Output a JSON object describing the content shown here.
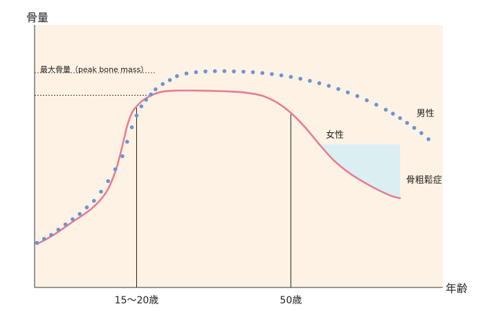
{
  "chart_data": {
    "type": "line",
    "title": "",
    "ylabel": "骨量",
    "xlabel": "年齢",
    "x_ticks": [
      {
        "x": 17.5,
        "label": "15～20歳"
      },
      {
        "x": 50,
        "label": "50歳"
      }
    ],
    "annotations": {
      "peak_bone_mass": "最大骨量（peak bone mass）",
      "osteoporosis": "骨粗鬆症"
    },
    "xlim": [
      -4,
      82
    ],
    "ylim": [
      0,
      100
    ],
    "series": [
      {
        "name": "男性",
        "style": "dotted",
        "color": "#6b93d6",
        "x": [
          -3.5,
          -2,
          -0.5,
          1,
          2.5,
          4,
          5.5,
          7,
          8.5,
          10,
          11.5,
          13,
          14.5,
          15.5,
          16.5,
          17.5,
          18.5,
          19.5,
          20.5,
          21.5,
          23,
          24.5,
          26,
          28,
          30,
          32,
          34,
          36,
          38,
          40,
          42,
          44,
          46,
          48,
          50,
          52,
          54,
          56,
          58,
          60,
          62,
          64,
          66,
          68,
          70,
          71.5,
          73,
          74.5,
          76,
          77.5,
          79
        ],
        "y": [
          17,
          18.5,
          20,
          22,
          24,
          26,
          28,
          30.5,
          33,
          36.5,
          40.5,
          45,
          50,
          55.5,
          61,
          65.5,
          69,
          71.5,
          73.5,
          75.5,
          77.5,
          79,
          80.5,
          81.5,
          82,
          82.3,
          82.4,
          82.4,
          82.3,
          82.2,
          82,
          81.7,
          81.3,
          80.8,
          80.2,
          79.5,
          78.7,
          77.8,
          76.8,
          75.6,
          74.3,
          72.9,
          71.3,
          69.6,
          67.7,
          66.2,
          64.5,
          62.7,
          60.8,
          58.8,
          56.5
        ]
      },
      {
        "name": "女性",
        "style": "solid",
        "color": "#e97b93",
        "x": [
          -3.5,
          0,
          4,
          8,
          11,
          13,
          14.5,
          15.5,
          16.5,
          17.5,
          19,
          21,
          23,
          26,
          30,
          35,
          40,
          44,
          47,
          50,
          53,
          56,
          59,
          62,
          65,
          68,
          71,
          73
        ],
        "y": [
          16.5,
          20,
          25,
          30,
          36,
          44,
          54,
          61.5,
          66.5,
          69,
          71.5,
          73.5,
          74.6,
          75,
          75,
          74.8,
          74.3,
          73,
          70.5,
          66.5,
          61,
          54.5,
          48.5,
          44,
          40.5,
          37.5,
          35,
          34
        ]
      }
    ],
    "guides": {
      "peak_levels": [
        81.8,
        73.2
      ],
      "vertical_lines": [
        17.5,
        50
      ],
      "osteoporosis_threshold": 54.5,
      "osteoporosis_x_range": [
        55.5,
        73
      ]
    },
    "colors": {
      "plot_background": "#fdf2e4",
      "osteoporosis_fill": "#dbeff3",
      "axis": "#333333",
      "guide": "#222222"
    },
    "grid": false,
    "legend": "inline labels"
  }
}
